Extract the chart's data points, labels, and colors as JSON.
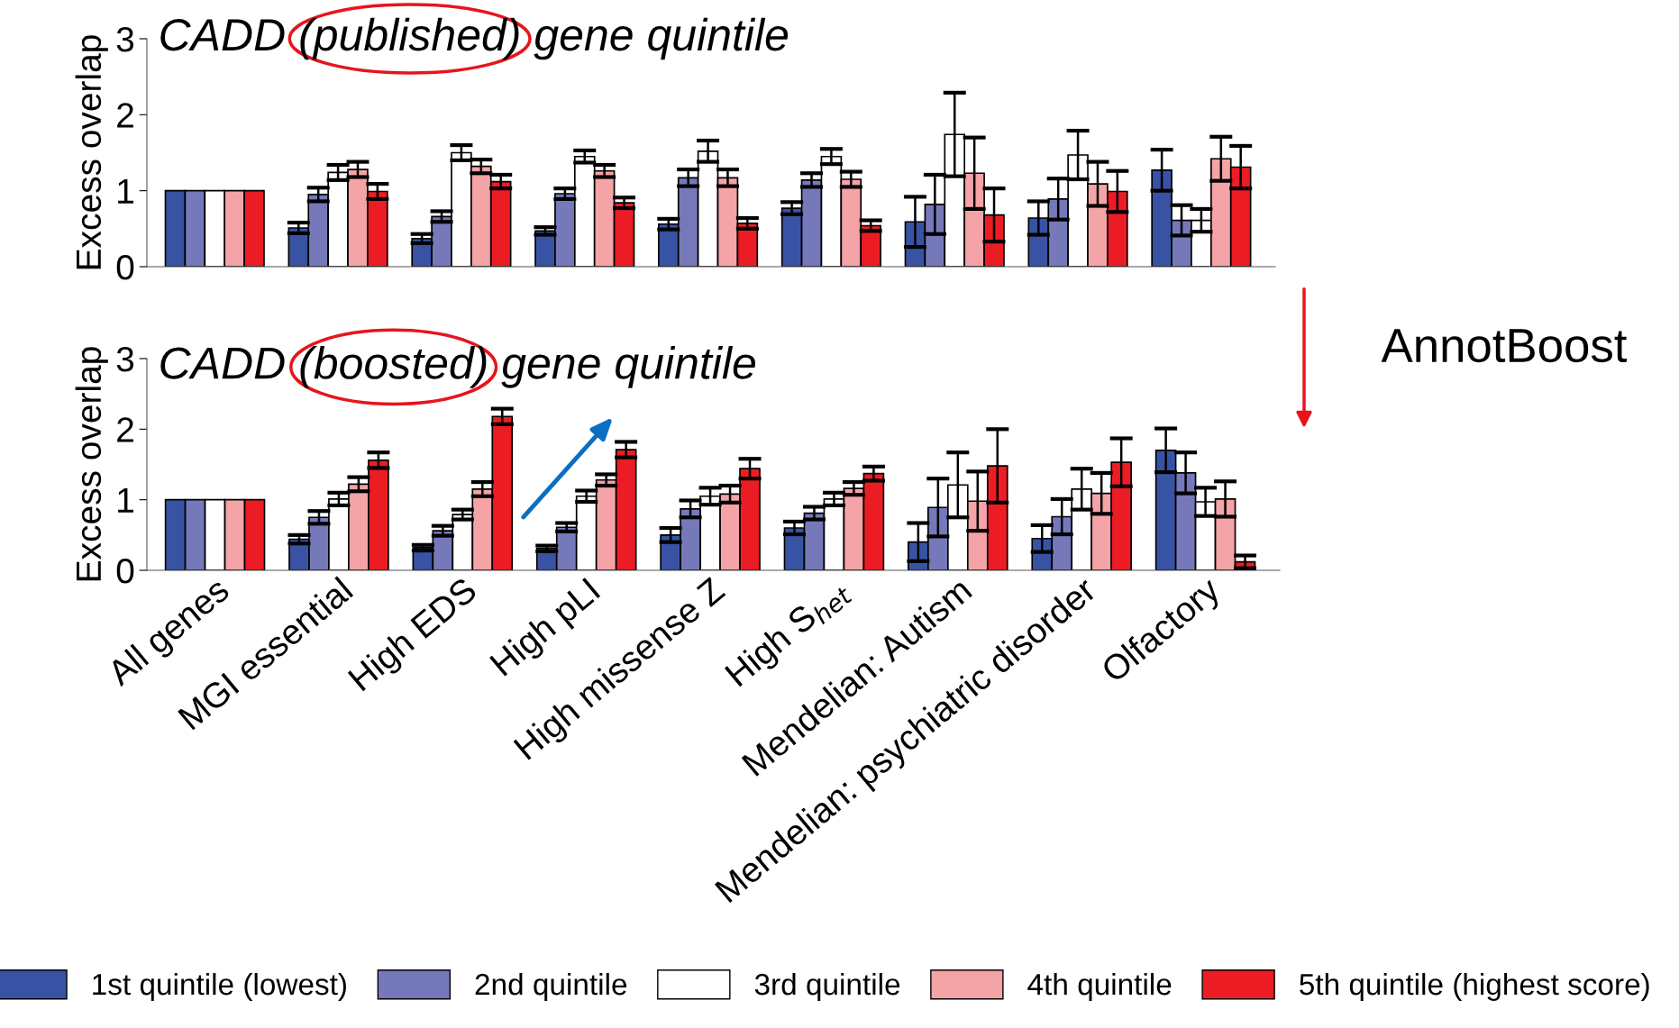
{
  "chart_data": [
    {
      "type": "bar",
      "title": "CADD (published) gene quintile",
      "ylabel": "Excess overlap",
      "categories": [
        null,
        null,
        null,
        null,
        null,
        null,
        null,
        null,
        null
      ],
      "ylim": [
        0,
        3
      ],
      "yticks": [
        0,
        1,
        2,
        3
      ],
      "tick_labels": "y",
      "series": [
        {
          "color": "#3953a4",
          "values": [
            1,
            0.51,
            0.37,
            0.47,
            0.56,
            0.77,
            0.59,
            0.64,
            1.27
          ],
          "errors": [
            null,
            0.07,
            0.06,
            0.05,
            0.07,
            0.08,
            0.33,
            0.22,
            0.27
          ]
        },
        {
          "color": "#7679b9",
          "values": [
            1,
            0.95,
            0.66,
            0.96,
            1.17,
            1.14,
            0.82,
            0.89,
            0.61
          ],
          "errors": [
            null,
            0.09,
            0.07,
            0.07,
            0.11,
            0.09,
            0.39,
            0.27,
            0.2
          ]
        },
        {
          "color": "#ffffff",
          "values": [
            1,
            1.24,
            1.5,
            1.45,
            1.52,
            1.45,
            1.74,
            1.47,
            0.61
          ],
          "errors": [
            null,
            0.1,
            0.1,
            0.08,
            0.14,
            0.1,
            0.55,
            0.32,
            0.15
          ]
        },
        {
          "color": "#f4a3a6",
          "values": [
            1,
            1.28,
            1.32,
            1.26,
            1.17,
            1.15,
            1.23,
            1.09,
            1.42
          ],
          "errors": [
            null,
            0.1,
            0.09,
            0.08,
            0.11,
            0.1,
            0.47,
            0.29,
            0.29
          ]
        },
        {
          "color": "#ec1c24",
          "values": [
            1,
            0.99,
            1.12,
            0.84,
            0.57,
            0.54,
            0.68,
            0.99,
            1.31
          ],
          "errors": [
            null,
            0.1,
            0.09,
            0.07,
            0.07,
            0.07,
            0.35,
            0.27,
            0.28
          ]
        }
      ]
    },
    {
      "type": "bar",
      "title": "CADD (boosted) gene quintile",
      "ylabel": "Excess overlap",
      "categories": [
        "All genes",
        "MGI essential",
        "High EDS",
        "High pLI",
        "High missense Z",
        "High S$_{het}$",
        "Mendelian: Autism",
        "Mendelian: psychiatric disorder",
        "Olfactory"
      ],
      "ylim": [
        0,
        3
      ],
      "yticks": [
        0,
        1,
        2,
        3
      ],
      "legend": "bottom",
      "annotations": [
        "AnnotBoost"
      ],
      "series": [
        {
          "name": "1st quintile (lowest)",
          "color": "#3953a4",
          "values": [
            1,
            0.44,
            0.32,
            0.31,
            0.5,
            0.6,
            0.4,
            0.45,
            1.7
          ],
          "errors": [
            null,
            0.06,
            0.04,
            0.04,
            0.1,
            0.09,
            0.27,
            0.19,
            0.31
          ]
        },
        {
          "name": "2nd quintile",
          "color": "#7679b9",
          "values": [
            1,
            0.75,
            0.56,
            0.61,
            0.87,
            0.81,
            0.89,
            0.76,
            1.38
          ],
          "errors": [
            null,
            0.09,
            0.07,
            0.06,
            0.12,
            0.09,
            0.41,
            0.25,
            0.29
          ]
        },
        {
          "name": "3rd quintile",
          "color": "#ffffff",
          "values": [
            1,
            1.01,
            0.79,
            1.05,
            1.05,
            1.01,
            1.21,
            1.15,
            0.97
          ],
          "errors": [
            null,
            0.09,
            0.07,
            0.08,
            0.12,
            0.09,
            0.46,
            0.29,
            0.2
          ]
        },
        {
          "name": "4th quintile",
          "color": "#f4a3a6",
          "values": [
            1,
            1.22,
            1.15,
            1.28,
            1.08,
            1.16,
            0.98,
            1.09,
            1.01
          ],
          "errors": [
            null,
            0.1,
            0.1,
            0.08,
            0.12,
            0.09,
            0.42,
            0.29,
            0.25
          ]
        },
        {
          "name": "5th quintile (highest score)",
          "color": "#ec1c24",
          "values": [
            1,
            1.56,
            2.18,
            1.71,
            1.44,
            1.37,
            1.48,
            1.53,
            0.12
          ],
          "errors": [
            null,
            0.11,
            0.11,
            0.11,
            0.14,
            0.1,
            0.52,
            0.34,
            0.09
          ]
        }
      ]
    }
  ]
}
